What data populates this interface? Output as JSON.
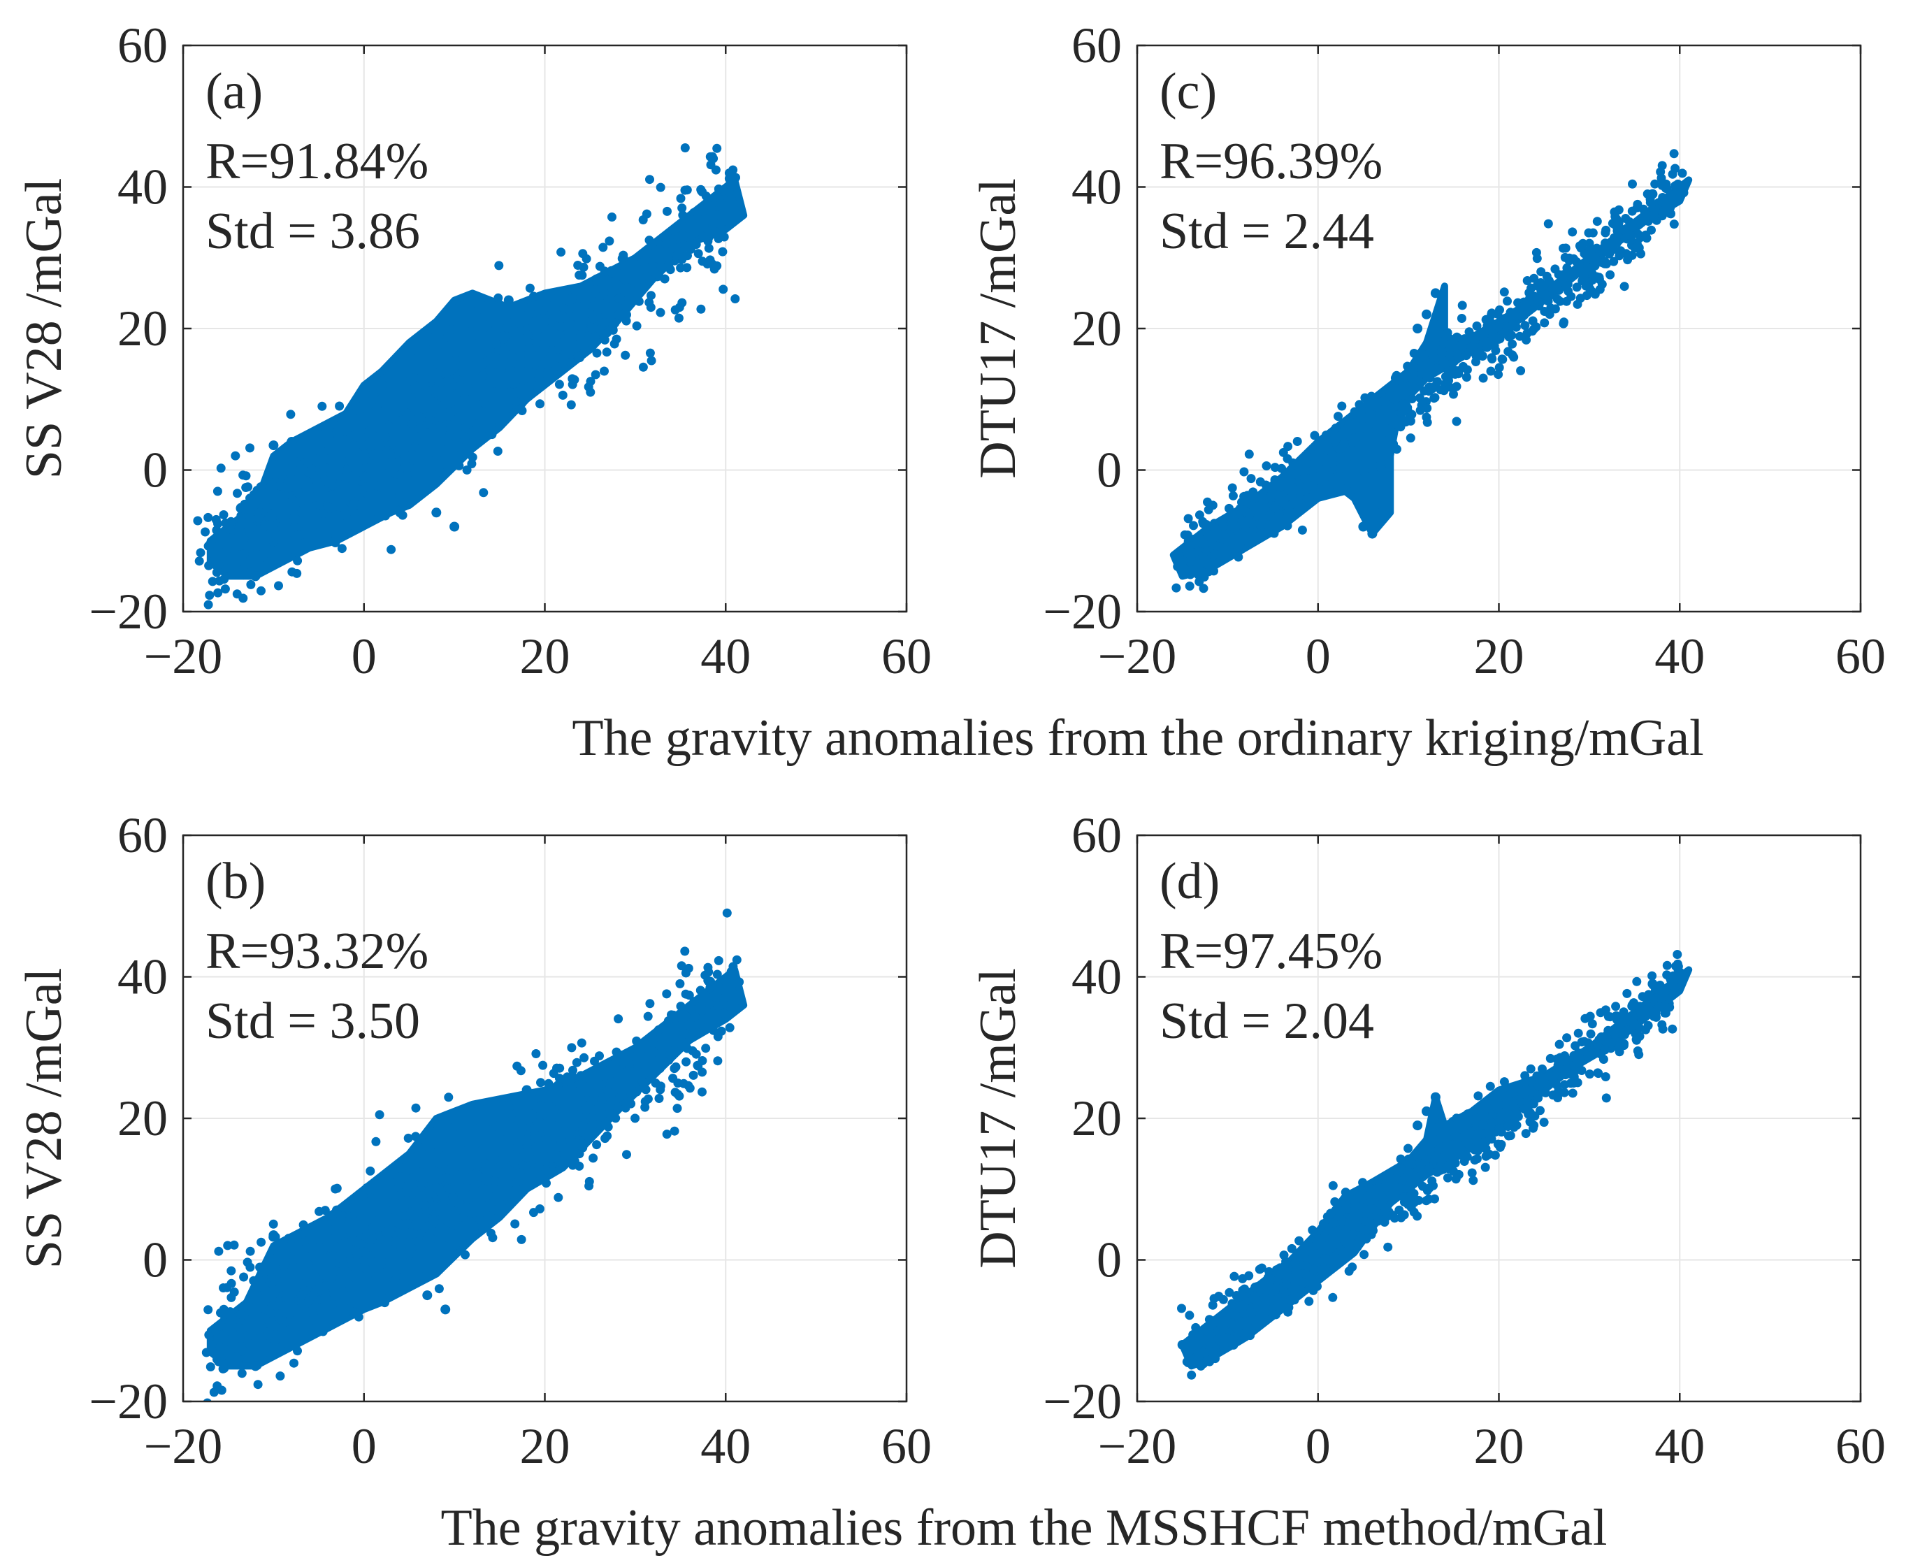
{
  "figure": {
    "xlabel_top": "The gravity anomalies from the ordinary kriging/mGal",
    "xlabel_bottom": "The gravity anomalies from the MSSHCF method/mGal",
    "marker_color": "#0072BD",
    "grid_color": "#e6e6e6",
    "axis_color": "#262626"
  },
  "chart_data": [
    {
      "id": "a",
      "type": "scatter",
      "label": "(a)",
      "r_text": "R=91.84%",
      "std_text": "Std = 3.86",
      "ylabel": "SS V28 /mGal",
      "xlabel": "",
      "xlim": [
        -20,
        60
      ],
      "ylim": [
        -20,
        60
      ],
      "xticks": [
        -20,
        0,
        20,
        40,
        60
      ],
      "yticks": [
        -20,
        0,
        20,
        40,
        60
      ],
      "xtick_labels": [
        "−20",
        "0",
        "20",
        "40",
        "60"
      ],
      "ytick_labels": [
        "−20",
        "0",
        "20",
        "40",
        "60"
      ],
      "grid": true,
      "envelope": {
        "points": [
          [
            -17,
            -10
          ],
          [
            -15,
            -8
          ],
          [
            -12,
            -5
          ],
          [
            -10,
            2
          ],
          [
            -8,
            4
          ],
          [
            -5,
            6
          ],
          [
            -2,
            8
          ],
          [
            0,
            12
          ],
          [
            2,
            14
          ],
          [
            5,
            18
          ],
          [
            8,
            21
          ],
          [
            10,
            24
          ],
          [
            12,
            25
          ],
          [
            16,
            23
          ],
          [
            20,
            25
          ],
          [
            24,
            26
          ],
          [
            27,
            28
          ],
          [
            30,
            30
          ],
          [
            33,
            33
          ],
          [
            36,
            36
          ],
          [
            39,
            39
          ],
          [
            41,
            41
          ],
          [
            42,
            36
          ],
          [
            40,
            34
          ],
          [
            36,
            32
          ],
          [
            32,
            27
          ],
          [
            28,
            21
          ],
          [
            25,
            17
          ],
          [
            22,
            14
          ],
          [
            18,
            10
          ],
          [
            15,
            6
          ],
          [
            12,
            3
          ],
          [
            8,
            -2
          ],
          [
            5,
            -5
          ],
          [
            3,
            -6
          ],
          [
            0,
            -8
          ],
          [
            -3,
            -10
          ],
          [
            -6,
            -11
          ],
          [
            -9,
            -13
          ],
          [
            -12,
            -15
          ],
          [
            -15,
            -15
          ],
          [
            -17,
            -13
          ]
        ],
        "center": [
          [
            -17,
            -12
          ],
          [
            -10,
            -6
          ],
          [
            -5,
            -2
          ],
          [
            0,
            2
          ],
          [
            5,
            6
          ],
          [
            10,
            11
          ],
          [
            15,
            14
          ],
          [
            20,
            18
          ],
          [
            25,
            21
          ],
          [
            30,
            27
          ],
          [
            35,
            32
          ],
          [
            41,
            38
          ]
        ],
        "spread": 6,
        "n_points": 4200
      },
      "outliers": [
        [
          -10,
          3.5
        ],
        [
          -8,
          4
        ],
        [
          -4,
          6
        ],
        [
          0,
          10
        ],
        [
          8,
          -6
        ],
        [
          10,
          -8
        ],
        [
          4,
          -6
        ],
        [
          -14,
          -14
        ],
        [
          -12,
          -15
        ],
        [
          16,
          24
        ],
        [
          22,
          25
        ],
        [
          2,
          12
        ],
        [
          12,
          24
        ]
      ]
    },
    {
      "id": "c",
      "type": "scatter",
      "label": "(c)",
      "r_text": "R=96.39%",
      "std_text": "Std = 2.44",
      "ylabel": "DTU17 /mGal",
      "xlabel": "",
      "xlim": [
        -20,
        60
      ],
      "ylim": [
        -20,
        60
      ],
      "xticks": [
        -20,
        0,
        20,
        40,
        60
      ],
      "yticks": [
        -20,
        0,
        20,
        40,
        60
      ],
      "xtick_labels": [
        "−20",
        "0",
        "20",
        "40",
        "60"
      ],
      "ytick_labels": [
        "−20",
        "0",
        "20",
        "40",
        "60"
      ],
      "grid": true,
      "envelope": {
        "points": [
          [
            -16,
            -12
          ],
          [
            -12,
            -8
          ],
          [
            -8,
            -5
          ],
          [
            -4,
            -1
          ],
          [
            0,
            4
          ],
          [
            4,
            8
          ],
          [
            8,
            12
          ],
          [
            10,
            14
          ],
          [
            12,
            18
          ],
          [
            13,
            22
          ],
          [
            14,
            26
          ],
          [
            14,
            19
          ],
          [
            16,
            18
          ],
          [
            20,
            21
          ],
          [
            25,
            25
          ],
          [
            30,
            30
          ],
          [
            35,
            35
          ],
          [
            38,
            38
          ],
          [
            41,
            41
          ],
          [
            40,
            38
          ],
          [
            36,
            35
          ],
          [
            32,
            31
          ],
          [
            28,
            27
          ],
          [
            24,
            23
          ],
          [
            20,
            19
          ],
          [
            16,
            16
          ],
          [
            12,
            13
          ],
          [
            9,
            9
          ],
          [
            8,
            2
          ],
          [
            8,
            -6
          ],
          [
            6,
            -9
          ],
          [
            4,
            -4
          ],
          [
            3,
            -3
          ],
          [
            0,
            -4
          ],
          [
            -4,
            -8
          ],
          [
            -8,
            -11
          ],
          [
            -12,
            -14
          ],
          [
            -15,
            -15
          ]
        ],
        "center": [
          [
            -15,
            -13
          ],
          [
            -10,
            -8
          ],
          [
            -5,
            -4
          ],
          [
            0,
            0
          ],
          [
            5,
            5
          ],
          [
            10,
            10
          ],
          [
            15,
            15
          ],
          [
            20,
            20
          ],
          [
            25,
            25
          ],
          [
            30,
            29
          ],
          [
            35,
            34
          ],
          [
            40,
            40
          ]
        ],
        "spread": 3.2,
        "n_points": 4000
      },
      "outliers": [
        [
          13,
          25
        ],
        [
          12,
          22
        ],
        [
          11,
          20
        ],
        [
          7,
          -7
        ],
        [
          6,
          -9
        ],
        [
          5,
          -8
        ],
        [
          7,
          -6
        ],
        [
          37,
          39
        ],
        [
          38,
          38
        ],
        [
          40,
          40
        ],
        [
          6,
          -2
        ],
        [
          4,
          -2
        ]
      ]
    },
    {
      "id": "b",
      "type": "scatter",
      "label": "(b)",
      "r_text": "R=93.32%",
      "std_text": "Std = 3.50",
      "ylabel": "SS V28 /mGal",
      "xlabel": "",
      "xlim": [
        -20,
        60
      ],
      "ylim": [
        -20,
        60
      ],
      "xticks": [
        -20,
        0,
        20,
        40,
        60
      ],
      "yticks": [
        -20,
        0,
        20,
        40,
        60
      ],
      "xtick_labels": [
        "−20",
        "0",
        "20",
        "40",
        "60"
      ],
      "ytick_labels": [
        "−20",
        "0",
        "20",
        "40",
        "60"
      ],
      "grid": true,
      "envelope": {
        "points": [
          [
            -17,
            -10
          ],
          [
            -13,
            -6
          ],
          [
            -10,
            2
          ],
          [
            -7,
            4
          ],
          [
            -4,
            6
          ],
          [
            -1,
            9
          ],
          [
            2,
            12
          ],
          [
            5,
            15
          ],
          [
            8,
            20
          ],
          [
            12,
            22
          ],
          [
            16,
            23
          ],
          [
            20,
            24
          ],
          [
            24,
            26
          ],
          [
            27,
            28
          ],
          [
            30,
            30
          ],
          [
            33,
            33
          ],
          [
            36,
            36
          ],
          [
            39,
            39
          ],
          [
            41,
            41
          ],
          [
            42,
            36
          ],
          [
            40,
            34
          ],
          [
            36,
            31
          ],
          [
            32,
            26
          ],
          [
            28,
            21
          ],
          [
            25,
            17
          ],
          [
            22,
            13
          ],
          [
            18,
            10
          ],
          [
            15,
            6
          ],
          [
            12,
            3
          ],
          [
            8,
            -2
          ],
          [
            5,
            -4
          ],
          [
            2,
            -6
          ],
          [
            0,
            -7
          ],
          [
            -3,
            -9
          ],
          [
            -6,
            -11
          ],
          [
            -9,
            -13
          ],
          [
            -12,
            -15
          ],
          [
            -15,
            -15
          ],
          [
            -17,
            -13
          ]
        ],
        "center": [
          [
            -17,
            -11
          ],
          [
            -10,
            -6
          ],
          [
            -5,
            -2
          ],
          [
            0,
            2
          ],
          [
            5,
            6
          ],
          [
            10,
            10
          ],
          [
            15,
            14
          ],
          [
            20,
            18
          ],
          [
            25,
            21
          ],
          [
            30,
            26
          ],
          [
            35,
            32
          ],
          [
            41,
            38
          ]
        ],
        "spread": 5.4,
        "n_points": 4200
      },
      "outliers": [
        [
          -10,
          3.5
        ],
        [
          -8,
          3
        ],
        [
          -3,
          7
        ],
        [
          1,
          10
        ],
        [
          7,
          -5
        ],
        [
          9,
          -7
        ],
        [
          -14,
          -14
        ],
        [
          -12,
          -15
        ],
        [
          18,
          24
        ],
        [
          24,
          26
        ],
        [
          4,
          13
        ]
      ]
    },
    {
      "id": "d",
      "type": "scatter",
      "label": "(d)",
      "r_text": "R=97.45%",
      "std_text": "Std = 2.04",
      "ylabel": "DTU17 /mGal",
      "xlabel": "",
      "xlim": [
        -20,
        60
      ],
      "ylim": [
        -20,
        60
      ],
      "xticks": [
        -20,
        0,
        20,
        40,
        60
      ],
      "yticks": [
        -20,
        0,
        20,
        40,
        60
      ],
      "xtick_labels": [
        "−20",
        "0",
        "20",
        "40",
        "60"
      ],
      "ytick_labels": [
        "−20",
        "0",
        "20",
        "40",
        "60"
      ],
      "grid": true,
      "envelope": {
        "points": [
          [
            -15,
            -12
          ],
          [
            -11,
            -8
          ],
          [
            -7,
            -4
          ],
          [
            -3,
            0
          ],
          [
            0,
            4
          ],
          [
            3,
            9
          ],
          [
            6,
            11
          ],
          [
            10,
            14
          ],
          [
            12,
            17
          ],
          [
            13,
            23
          ],
          [
            14,
            19
          ],
          [
            17,
            21
          ],
          [
            20,
            24
          ],
          [
            25,
            26
          ],
          [
            30,
            30
          ],
          [
            35,
            35
          ],
          [
            38,
            38
          ],
          [
            41,
            41
          ],
          [
            40,
            38
          ],
          [
            36,
            34
          ],
          [
            32,
            30
          ],
          [
            28,
            27
          ],
          [
            24,
            23
          ],
          [
            20,
            19
          ],
          [
            16,
            15
          ],
          [
            12,
            12
          ],
          [
            8,
            8
          ],
          [
            4,
            1
          ],
          [
            2,
            -1
          ],
          [
            0,
            -3
          ],
          [
            -4,
            -7
          ],
          [
            -8,
            -11
          ],
          [
            -12,
            -14
          ],
          [
            -14,
            -15
          ]
        ],
        "center": [
          [
            -14,
            -13
          ],
          [
            -10,
            -9
          ],
          [
            -5,
            -4
          ],
          [
            0,
            0
          ],
          [
            5,
            5
          ],
          [
            10,
            10
          ],
          [
            15,
            15
          ],
          [
            20,
            20
          ],
          [
            25,
            24
          ],
          [
            30,
            29
          ],
          [
            35,
            34
          ],
          [
            40,
            40
          ]
        ],
        "spread": 2.8,
        "n_points": 4000
      },
      "outliers": [
        [
          13,
          23
        ],
        [
          12,
          21
        ],
        [
          11,
          19
        ],
        [
          37,
          39
        ],
        [
          38,
          38
        ],
        [
          40,
          40
        ],
        [
          -14,
          -14
        ],
        [
          -15,
          -12
        ]
      ]
    }
  ]
}
